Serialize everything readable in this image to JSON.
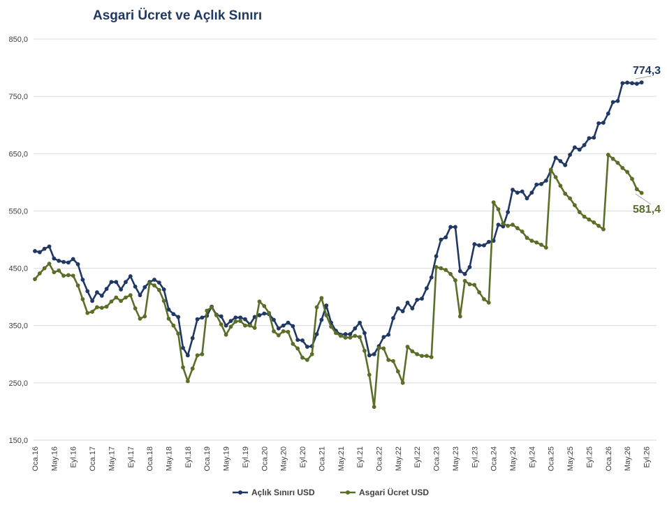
{
  "chart_data": {
    "type": "line",
    "title": "Asgari Ücret ve Açlık Sınırı",
    "ylim": [
      150,
      850
    ],
    "yticks": [
      "150,0",
      "250,0",
      "350,0",
      "450,0",
      "550,0",
      "650,0",
      "750,0",
      "850,0"
    ],
    "ytick_values": [
      150,
      250,
      350,
      450,
      550,
      650,
      750,
      850
    ],
    "x_tick_labels": [
      "Oca.16",
      "May.16",
      "Eyl.16",
      "Oca.17",
      "May.17",
      "Eyl.17",
      "Oca.18",
      "May.18",
      "Eyl.18",
      "Oca.19",
      "May.19",
      "Eyl.19",
      "Oca.20",
      "May.20",
      "Eyl.20",
      "Oca.21",
      "May.21",
      "Eyl.21",
      "Oca.22",
      "May.22",
      "Eyl.22",
      "Oca.23",
      "May.23",
      "Eyl.23",
      "Oca.24",
      "May.24",
      "Eyl.24",
      "Oca.25",
      "May.25",
      "Eyl.25",
      "Oca.26",
      "May.26",
      "Eyl.26"
    ],
    "x_tick_every": 4,
    "grid": true,
    "legend_position": "bottom",
    "series": [
      {
        "name": "Açlık Sınırı USD",
        "color": "#1f3864",
        "end_label": "774,3",
        "values": [
          480,
          478,
          484,
          488,
          467,
          463,
          461,
          460,
          466,
          457,
          430,
          410,
          393,
          408,
          402,
          414,
          426,
          426,
          413,
          426,
          436,
          418,
          403,
          417,
          426,
          430,
          425,
          413,
          378,
          370,
          365,
          311,
          298,
          328,
          361,
          364,
          367,
          383,
          369,
          366,
          350,
          358,
          364,
          364,
          361,
          352,
          365,
          368,
          371,
          370,
          360,
          345,
          350,
          355,
          349,
          325,
          324,
          313,
          314,
          335,
          360,
          385,
          355,
          341,
          334,
          335,
          335,
          345,
          355,
          337,
          298,
          300,
          314,
          330,
          334,
          363,
          380,
          375,
          390,
          380,
          395,
          397,
          415,
          434,
          471,
          500,
          504,
          522,
          522,
          445,
          440,
          452,
          492,
          490,
          490,
          496,
          498,
          526,
          523,
          548,
          587,
          582,
          584,
          572,
          582,
          596,
          597,
          603,
          621,
          643,
          637,
          630,
          648,
          661,
          657,
          665,
          677,
          678,
          703,
          704,
          720,
          740,
          742,
          773,
          774,
          773,
          772,
          774.3
        ]
      },
      {
        "name": "Asgari Ücret USD",
        "color": "#5b6e28",
        "end_label": "581,4",
        "values": [
          431,
          441,
          450,
          458,
          443,
          446,
          437,
          438,
          437,
          420,
          396,
          372,
          374,
          382,
          381,
          383,
          392,
          399,
          393,
          399,
          403,
          380,
          362,
          366,
          424,
          420,
          412,
          393,
          362,
          350,
          336,
          277,
          253,
          275,
          298,
          300,
          376,
          382,
          368,
          352,
          334,
          348,
          357,
          358,
          350,
          350,
          346,
          392,
          384,
          372,
          340,
          333,
          340,
          339,
          318,
          310,
          294,
          290,
          300,
          382,
          398,
          368,
          348,
          337,
          332,
          329,
          329,
          332,
          330,
          306,
          264,
          208,
          311,
          310,
          290,
          288,
          270,
          250,
          313,
          305,
          300,
          297,
          297,
          295,
          452,
          450,
          447,
          440,
          429,
          366,
          428,
          422,
          421,
          408,
          396,
          390,
          565,
          553,
          528,
          524,
          526,
          520,
          514,
          503,
          498,
          495,
          491,
          486,
          622,
          609,
          594,
          580,
          572,
          560,
          548,
          540,
          535,
          530,
          524,
          518,
          648,
          641,
          634,
          625,
          618,
          606,
          588,
          581.4
        ]
      }
    ]
  }
}
